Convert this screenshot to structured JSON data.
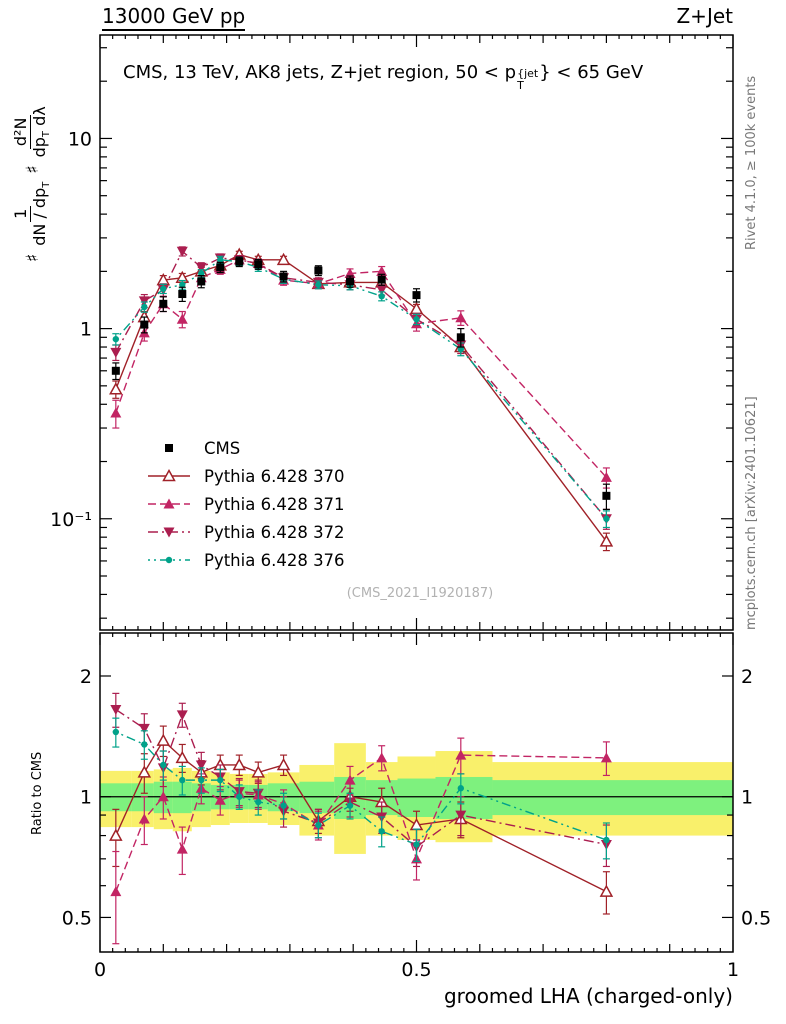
{
  "header": {
    "left": "13000 GeV pp",
    "right": "Z+Jet"
  },
  "panel_title": {
    "pre": "CMS, 13 TeV, AK8 jets, Z+jet region, 50 < p",
    "sup": "{jet",
    "sub": "T",
    "post": "} < 65 GeV"
  },
  "ylabel": {
    "s1": "♯",
    "f1n": "1",
    "f1d_a": "dN / dp",
    "f1d_sub": "T",
    "s2": "♯",
    "f2n": "d²N",
    "f2d_a": "dp",
    "f2d_sub": "T",
    "f2d_b": " dλ"
  },
  "ratio_ylabel": "Ratio to CMS",
  "xlabel": "groomed LHA (charged-only)",
  "watermark": "(CMS_2021_I1920187)",
  "right_labels": {
    "top": "Rivet 4.1.0, ≥ 100k events",
    "bottom": "mcplots.cern.ch [arXiv:2401.10621]"
  },
  "axes": {
    "x": {
      "min": 0,
      "max": 1,
      "ticks": [
        {
          "v": 0,
          "label": "0"
        },
        {
          "v": 0.5,
          "label": "0.5"
        },
        {
          "v": 1,
          "label": "1"
        }
      ]
    },
    "ytop": {
      "scale": "log",
      "min": 0.026,
      "max": 35,
      "ticks": [
        {
          "v": 10,
          "label": "10"
        },
        {
          "v": 1,
          "label": "1"
        },
        {
          "v": 0.1,
          "label": "10⁻¹"
        }
      ]
    },
    "yratio": {
      "scale": "log",
      "min": 0.41,
      "max": 2.56,
      "ticks": [
        {
          "v": 2,
          "label": "2"
        },
        {
          "v": 1,
          "label": "1"
        },
        {
          "v": 0.5,
          "label": "0.5"
        }
      ]
    }
  },
  "chart_data": {
    "type": "line",
    "title": "CMS, 13 TeV, AK8 jets, Z+jet region, 50 < p_T^{jet} < 65 GeV",
    "xlabel": "groomed LHA (charged-only)",
    "ylabel": "1/(dN/dp_T) d²N/(dp_T dλ)",
    "ratio_label": "Ratio to CMS",
    "x": [
      0.025,
      0.07,
      0.1,
      0.13,
      0.16,
      0.19,
      0.22,
      0.25,
      0.29,
      0.345,
      0.395,
      0.445,
      0.5,
      0.57,
      0.8
    ],
    "bin_edges": [
      0,
      0.05,
      0.085,
      0.115,
      0.145,
      0.175,
      0.205,
      0.235,
      0.265,
      0.315,
      0.37,
      0.42,
      0.47,
      0.53,
      0.62,
      1.0
    ],
    "series": [
      {
        "name": "CMS",
        "color": "#000000",
        "marker": "square-filled",
        "line": "none",
        "values": [
          0.6,
          1.05,
          1.35,
          1.52,
          1.77,
          2.1,
          2.25,
          2.18,
          1.88,
          2.02,
          1.77,
          1.81,
          1.5,
          0.9,
          0.132
        ],
        "errors": [
          0.06,
          0.1,
          0.12,
          0.13,
          0.13,
          0.13,
          0.13,
          0.13,
          0.12,
          0.12,
          0.12,
          0.12,
          0.12,
          0.1,
          0.02
        ]
      },
      {
        "name": "Pythia 6.428 370",
        "color": "#a02128",
        "marker": "triangle-open",
        "line": "solid",
        "values": [
          0.48,
          1.15,
          1.8,
          1.85,
          2.0,
          2.15,
          2.45,
          2.3,
          2.3,
          1.72,
          1.75,
          1.75,
          1.27,
          0.8,
          0.076
        ],
        "errors": [
          0.05,
          0.08,
          0.1,
          0.1,
          0.1,
          0.1,
          0.1,
          0.1,
          0.1,
          0.08,
          0.08,
          0.08,
          0.07,
          0.06,
          0.008
        ],
        "ratio": [
          0.8,
          1.15,
          1.38,
          1.25,
          1.15,
          1.2,
          1.2,
          1.15,
          1.2,
          0.87,
          1.0,
          0.97,
          0.85,
          0.88,
          0.58
        ],
        "ratio_errors": [
          0.13,
          0.13,
          0.12,
          0.1,
          0.08,
          0.07,
          0.07,
          0.07,
          0.07,
          0.06,
          0.08,
          0.08,
          0.07,
          0.09,
          0.07
        ]
      },
      {
        "name": "Pythia 6.428 371",
        "color": "#c22564",
        "marker": "triangle-filled",
        "line": "dashed",
        "values": [
          0.36,
          0.95,
          1.35,
          1.12,
          1.85,
          2.05,
          2.3,
          2.2,
          1.8,
          1.72,
          1.95,
          2.0,
          1.06,
          1.14,
          0.165
        ],
        "errors": [
          0.06,
          0.09,
          0.12,
          0.11,
          0.12,
          0.12,
          0.12,
          0.12,
          0.11,
          0.1,
          0.11,
          0.12,
          0.09,
          0.1,
          0.02
        ],
        "ratio": [
          0.58,
          0.88,
          1.0,
          0.74,
          1.05,
          0.98,
          1.02,
          1.01,
          0.96,
          0.85,
          1.1,
          1.25,
          0.7,
          1.27,
          1.25
        ],
        "ratio_errors": [
          0.15,
          0.12,
          0.12,
          0.1,
          0.09,
          0.08,
          0.08,
          0.08,
          0.08,
          0.07,
          0.09,
          0.09,
          0.08,
          0.13,
          0.12
        ]
      },
      {
        "name": "Pythia 6.428 372",
        "color": "#ab1e4f",
        "marker": "triangle-down-filled",
        "line": "dashdot",
        "values": [
          0.75,
          1.4,
          1.6,
          2.55,
          2.1,
          2.35,
          2.3,
          2.2,
          1.85,
          1.75,
          1.7,
          1.6,
          1.12,
          0.82,
          0.1
        ],
        "errors": [
          0.07,
          0.11,
          0.12,
          0.14,
          0.12,
          0.12,
          0.12,
          0.12,
          0.11,
          0.1,
          0.1,
          0.1,
          0.08,
          0.08,
          0.012
        ],
        "ratio": [
          1.65,
          1.48,
          1.18,
          1.6,
          1.2,
          1.12,
          1.03,
          1.02,
          0.92,
          0.86,
          0.97,
          0.89,
          0.75,
          0.9,
          0.76
        ],
        "ratio_errors": [
          0.16,
          0.13,
          0.12,
          0.11,
          0.09,
          0.08,
          0.08,
          0.08,
          0.08,
          0.07,
          0.08,
          0.08,
          0.08,
          0.1,
          0.09
        ]
      },
      {
        "name": "Pythia 6.428 376",
        "color": "#00a28a",
        "marker": "circle-filled",
        "line": "dashdotdot",
        "values": [
          0.88,
          1.3,
          1.62,
          1.7,
          1.95,
          2.3,
          2.25,
          2.1,
          1.82,
          1.7,
          1.68,
          1.48,
          1.12,
          0.78,
          0.1
        ],
        "errors": [
          0.06,
          0.08,
          0.09,
          0.09,
          0.09,
          0.1,
          0.1,
          0.1,
          0.09,
          0.08,
          0.08,
          0.08,
          0.07,
          0.06,
          0.01
        ],
        "ratio": [
          1.45,
          1.35,
          1.2,
          1.1,
          1.1,
          1.1,
          1.0,
          0.97,
          0.95,
          0.85,
          0.95,
          0.82,
          0.76,
          1.05,
          0.78
        ],
        "ratio_errors": [
          0.12,
          0.11,
          0.1,
          0.09,
          0.08,
          0.07,
          0.07,
          0.07,
          0.07,
          0.06,
          0.07,
          0.07,
          0.07,
          0.09,
          0.08
        ]
      }
    ],
    "ratio_bands": {
      "yellow": {
        "color": "#f9f06b",
        "lo": [
          0.84,
          0.84,
          0.83,
          0.82,
          0.84,
          0.85,
          0.86,
          0.86,
          0.85,
          0.8,
          0.72,
          0.8,
          0.78,
          0.77,
          0.8
        ],
        "hi": [
          1.16,
          1.16,
          1.17,
          1.18,
          1.16,
          1.15,
          1.14,
          1.14,
          1.15,
          1.2,
          1.36,
          1.22,
          1.26,
          1.3,
          1.22
        ]
      },
      "green": {
        "color": "#7ef17e",
        "lo": [
          0.92,
          0.92,
          0.91,
          0.91,
          0.92,
          0.93,
          0.93,
          0.93,
          0.92,
          0.91,
          0.88,
          0.9,
          0.89,
          0.88,
          0.9
        ],
        "hi": [
          1.08,
          1.08,
          1.09,
          1.09,
          1.08,
          1.07,
          1.07,
          1.07,
          1.08,
          1.09,
          1.12,
          1.1,
          1.11,
          1.12,
          1.1
        ]
      }
    },
    "legend_position": "middle-left",
    "grid": false
  }
}
